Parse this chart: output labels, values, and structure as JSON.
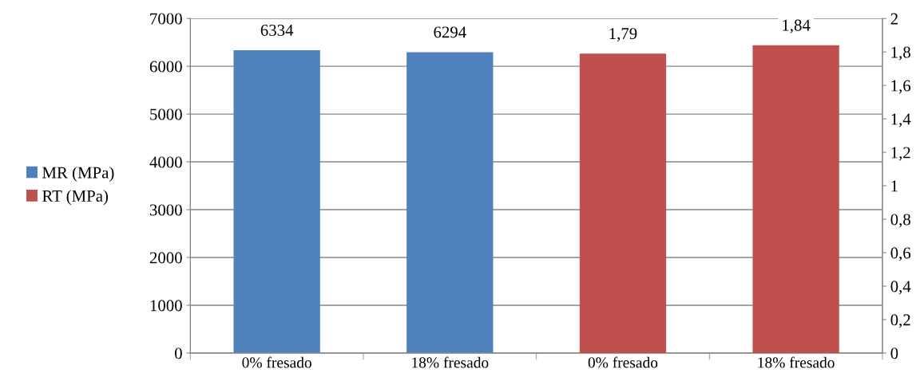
{
  "chart_data": {
    "type": "bar",
    "categories": [
      "0% fresado",
      "18% fresado",
      "0% fresado",
      "18% fresado"
    ],
    "series": [
      {
        "name": "MR (MPa)",
        "color": "#4f81bd",
        "values": [
          6334,
          6294,
          null,
          null
        ],
        "value_labels": [
          "6334",
          "6294",
          null,
          null
        ]
      },
      {
        "name": "RT (MPa)",
        "color": "#c0504d",
        "axis": "y2",
        "values": [
          null,
          null,
          1.79,
          1.84
        ],
        "value_labels": [
          null,
          null,
          "1,79",
          "1,84"
        ]
      }
    ],
    "ylim": [
      0,
      7000
    ],
    "yticks": [
      0,
      1000,
      2000,
      3000,
      4000,
      5000,
      6000,
      7000
    ],
    "y2lim": [
      0,
      2
    ],
    "y2ticks": [
      0,
      {
        "value": 0.2,
        "label": "0,2"
      },
      {
        "value": 0.4,
        "label": "0,4"
      },
      {
        "value": 0.6,
        "label": "0,6"
      },
      {
        "value": 0.8,
        "label": "0,8"
      },
      1,
      {
        "value": 1.2,
        "label": "1,2"
      },
      {
        "value": 1.4,
        "label": "1,4"
      },
      {
        "value": 1.6,
        "label": "1,6"
      },
      {
        "value": 1.8,
        "label": "1,8"
      },
      2
    ],
    "grid": "y",
    "legend": "left"
  }
}
